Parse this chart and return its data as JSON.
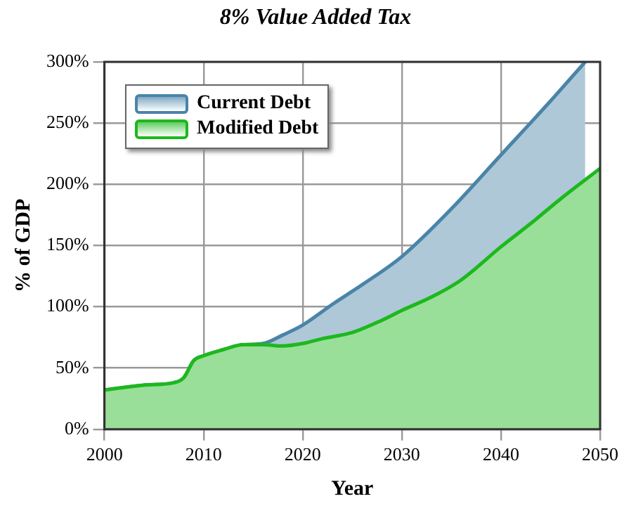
{
  "chart_data": {
    "type": "area",
    "title": "8% Value Added Tax",
    "xlabel": "Year",
    "ylabel": "% of GDP",
    "series": [
      {
        "name": "Current Debt",
        "color": "#4a84a8",
        "x": [
          2000,
          2004,
          2007,
          2008,
          2009,
          2010,
          2012,
          2014,
          2016,
          2018,
          2020,
          2023,
          2026,
          2030,
          2035,
          2040,
          2045,
          2048.5
        ],
        "values": [
          32,
          36,
          38,
          42,
          56,
          60,
          65,
          69,
          70,
          77,
          85,
          102,
          118,
          141,
          180,
          224,
          268,
          300
        ]
      },
      {
        "name": "Modified Debt",
        "color": "#1db81d",
        "x": [
          2000,
          2004,
          2007,
          2008,
          2009,
          2010,
          2012,
          2014,
          2016,
          2018,
          2020,
          2022,
          2025,
          2028,
          2030,
          2033,
          2036,
          2040,
          2043,
          2046,
          2050
        ],
        "values": [
          32,
          36,
          38,
          42,
          56,
          60,
          65,
          69,
          69,
          68,
          70,
          74,
          79,
          89,
          97,
          108,
          122,
          149,
          168,
          188,
          213
        ]
      }
    ],
    "xlim": [
      2000,
      2050
    ],
    "xticks": [
      2000,
      2010,
      2020,
      2030,
      2040,
      2050
    ],
    "ylim": [
      0,
      300
    ],
    "yticks": [
      {
        "value": 0,
        "label": "0%"
      },
      {
        "value": 50,
        "label": "50%"
      },
      {
        "value": 100,
        "label": "100%"
      },
      {
        "value": 150,
        "label": "150%"
      },
      {
        "value": 200,
        "label": "200%"
      },
      {
        "value": 250,
        "label": "250%"
      },
      {
        "value": 300,
        "label": "300%"
      }
    ],
    "grid": true,
    "legend": "top left",
    "marker": "none",
    "line_style": "solid"
  }
}
